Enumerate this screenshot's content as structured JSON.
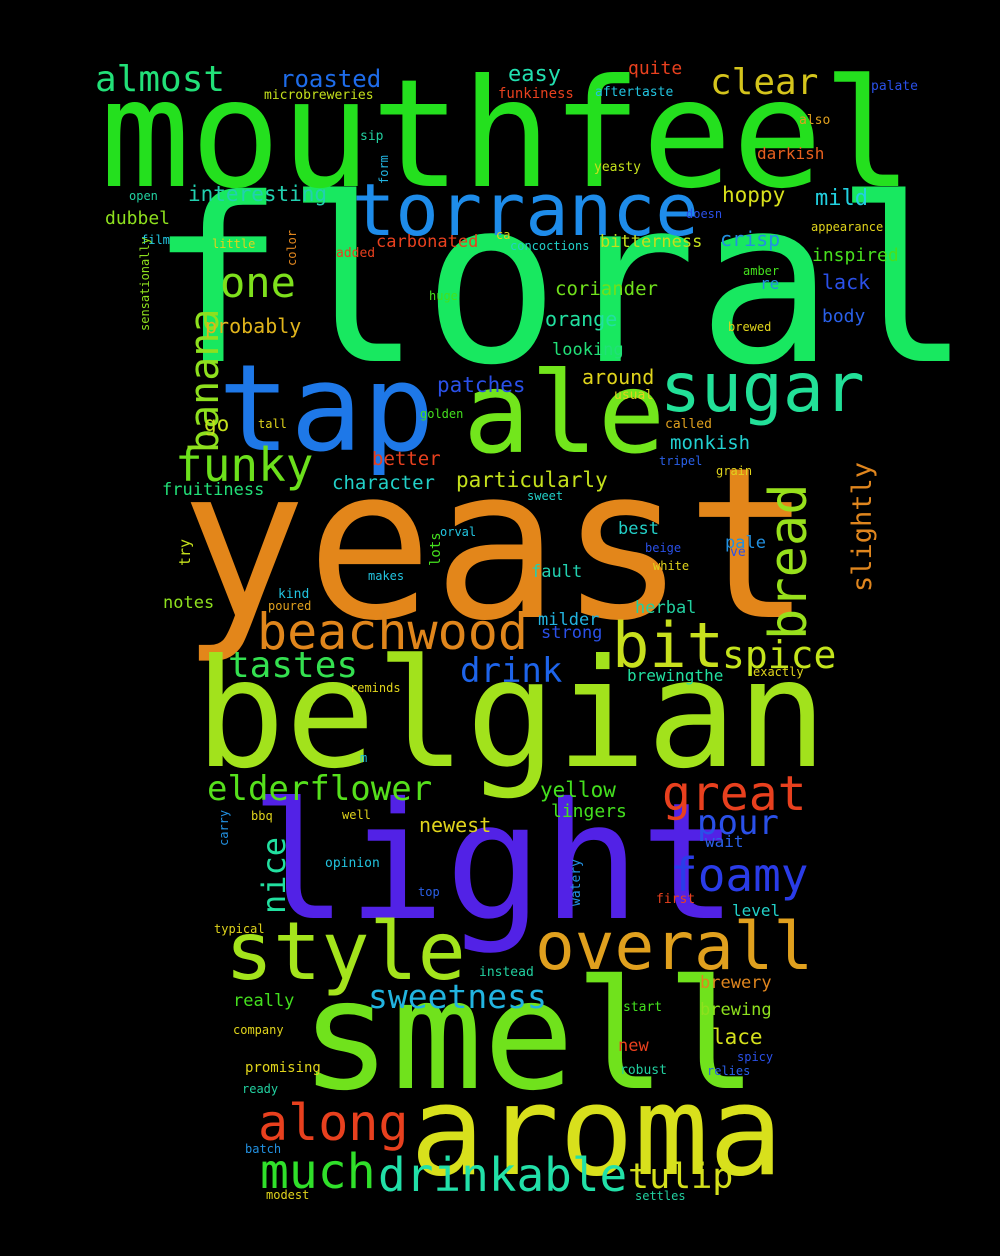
{
  "words": [
    {
      "t": "floral",
      "c": "#18e860"
    },
    {
      "t": "yeast",
      "c": "#e3861a"
    },
    {
      "t": "mouthfeel",
      "c": "#24e01e"
    },
    {
      "t": "belgian",
      "c": "#a2e21c"
    },
    {
      "t": "light",
      "c": "#5222e6"
    },
    {
      "t": "smell",
      "c": "#70e21c"
    },
    {
      "t": "aroma",
      "c": "#d8e01c"
    },
    {
      "t": "tap",
      "c": "#1e78e8"
    },
    {
      "t": "ale",
      "c": "#72e61c"
    },
    {
      "t": "torrance",
      "c": "#1e8cea"
    },
    {
      "t": "style",
      "c": "#a4e41c"
    },
    {
      "t": "overall",
      "c": "#e0a01e"
    },
    {
      "t": "sugar",
      "c": "#22e098"
    },
    {
      "t": "beachwood",
      "c": "#e0861c"
    },
    {
      "t": "bread",
      "c": "#98e01c"
    },
    {
      "t": "bit",
      "c": "#c8e01e"
    },
    {
      "t": "great",
      "c": "#e8401e"
    },
    {
      "t": "along",
      "c": "#e8401e"
    },
    {
      "t": "much",
      "c": "#30e02a"
    },
    {
      "t": "drinkable",
      "c": "#22e0a8"
    },
    {
      "t": "funky",
      "c": "#6ce01c"
    },
    {
      "t": "spice",
      "c": "#c4e41c"
    },
    {
      "t": "banana",
      "c": "#8ee01e"
    },
    {
      "t": "one",
      "c": "#7ee01c"
    },
    {
      "t": "foamy",
      "c": "#2a3ce8"
    },
    {
      "t": "tastes",
      "c": "#34e050"
    },
    {
      "t": "elderflower",
      "c": "#56e01c"
    },
    {
      "t": "sweetness",
      "c": "#22b4e0"
    },
    {
      "t": "tulip",
      "c": "#d4e01c"
    },
    {
      "t": "drink",
      "c": "#1e64ea"
    },
    {
      "t": "pour",
      "c": "#2a50e8"
    },
    {
      "t": "clear",
      "c": "#d4c41c"
    },
    {
      "t": "almost",
      "c": "#22e078"
    },
    {
      "t": "slightly",
      "c": "#e0861e"
    },
    {
      "t": "nice",
      "c": "#22e0a0"
    },
    {
      "t": "roasted",
      "c": "#1e6cea"
    },
    {
      "t": "easy",
      "c": "#22e0b0"
    },
    {
      "t": "quite",
      "c": "#e8401e"
    },
    {
      "t": "interesting",
      "c": "#22d0b0"
    },
    {
      "t": "hoppy",
      "c": "#d8e01c"
    },
    {
      "t": "mild",
      "c": "#22d0e0"
    },
    {
      "t": "dubbel",
      "c": "#8ee01e"
    },
    {
      "t": "crisp",
      "c": "#2290e0"
    },
    {
      "t": "inspired",
      "c": "#48e01e"
    },
    {
      "t": "lack",
      "c": "#2a50e8"
    },
    {
      "t": "body",
      "c": "#2a60e8"
    },
    {
      "t": "carbonated",
      "c": "#e8401e"
    },
    {
      "t": "bitterness",
      "c": "#c4e01c"
    },
    {
      "t": "coriander",
      "c": "#70e01c"
    },
    {
      "t": "orange",
      "c": "#22e0a0"
    },
    {
      "t": "looking",
      "c": "#22e078"
    },
    {
      "t": "probably",
      "c": "#e0b41c"
    },
    {
      "t": "patches",
      "c": "#2a50e8"
    },
    {
      "t": "around",
      "c": "#e0d41c"
    },
    {
      "t": "go",
      "c": "#c4e01c"
    },
    {
      "t": "better",
      "c": "#e8401e"
    },
    {
      "t": "monkish",
      "c": "#22d0d0"
    },
    {
      "t": "particularly",
      "c": "#c4e01c"
    },
    {
      "t": "character",
      "c": "#22d0c8"
    },
    {
      "t": "fruitiness",
      "c": "#22e078"
    },
    {
      "t": "best",
      "c": "#22d0c8"
    },
    {
      "t": "pale",
      "c": "#2290e0"
    },
    {
      "t": "fault",
      "c": "#22d0b0"
    },
    {
      "t": "notes",
      "c": "#8ee01e"
    },
    {
      "t": "herbal",
      "c": "#22d0a0"
    },
    {
      "t": "milder",
      "c": "#22b4e0"
    },
    {
      "t": "strong",
      "c": "#2a50e8"
    },
    {
      "t": "brewingthe",
      "c": "#22e0a0"
    },
    {
      "t": "yellow",
      "c": "#44e01e"
    },
    {
      "t": "lingers",
      "c": "#44e01e"
    },
    {
      "t": "newest",
      "c": "#e0d41c"
    },
    {
      "t": "wait",
      "c": "#2a60e8"
    },
    {
      "t": "level",
      "c": "#22d0c8"
    },
    {
      "t": "really",
      "c": "#44e01e"
    },
    {
      "t": "brewery",
      "c": "#e0861e"
    },
    {
      "t": "brewing",
      "c": "#8ee01e"
    },
    {
      "t": "lace",
      "c": "#d4e01c"
    },
    {
      "t": "new",
      "c": "#e8401e"
    },
    {
      "t": "microbreweries",
      "c": "#c4e01c"
    },
    {
      "t": "funkiness",
      "c": "#e8401e"
    },
    {
      "t": "aftertaste",
      "c": "#22c4e0"
    },
    {
      "t": "palate",
      "c": "#2a50e8"
    },
    {
      "t": "also",
      "c": "#e0a01e"
    },
    {
      "t": "darkish",
      "c": "#e8601e"
    },
    {
      "t": "sip",
      "c": "#22d0a0"
    },
    {
      "t": "form",
      "c": "#22b4e0"
    },
    {
      "t": "yeasty",
      "c": "#c4e01c"
    },
    {
      "t": "open",
      "c": "#22d0a0"
    },
    {
      "t": "film",
      "c": "#22c4e0"
    },
    {
      "t": "little",
      "c": "#e0d41c"
    },
    {
      "t": "color",
      "c": "#e0861e"
    },
    {
      "t": "added",
      "c": "#e8401e"
    },
    {
      "t": "ca",
      "c": "#e0d41c"
    },
    {
      "t": "concoctions",
      "c": "#22d0c8"
    },
    {
      "t": "doesn",
      "c": "#2a50e8"
    },
    {
      "t": "appearance",
      "c": "#e0d41c"
    },
    {
      "t": "sensationally",
      "c": "#8ee01e"
    },
    {
      "t": "amber",
      "c": "#44e01e"
    },
    {
      "t": "re",
      "c": "#2290e0"
    },
    {
      "t": "huge",
      "c": "#44e01e"
    },
    {
      "t": "brewed",
      "c": "#e0d41c"
    },
    {
      "t": "usual",
      "c": "#e0d41c"
    },
    {
      "t": "golden",
      "c": "#44e01e"
    },
    {
      "t": "tall",
      "c": "#e0d41c"
    },
    {
      "t": "called",
      "c": "#e0a01e"
    },
    {
      "t": "tripel",
      "c": "#2a60e8"
    },
    {
      "t": "grain",
      "c": "#e0d41c"
    },
    {
      "t": "sweet",
      "c": "#22d0c8"
    },
    {
      "t": "orval",
      "c": "#22c4e0"
    },
    {
      "t": "lots",
      "c": "#44e01e"
    },
    {
      "t": "try",
      "c": "#c4e01c"
    },
    {
      "t": "beige",
      "c": "#2a50e8"
    },
    {
      "t": "ve",
      "c": "#2a50e8"
    },
    {
      "t": "white",
      "c": "#e0d41c"
    },
    {
      "t": "makes",
      "c": "#22c4e0"
    },
    {
      "t": "kind",
      "c": "#22c4e0"
    },
    {
      "t": "poured",
      "c": "#e0a01e"
    },
    {
      "t": "exactly",
      "c": "#e0d41c"
    },
    {
      "t": "reminds",
      "c": "#e0d41c"
    },
    {
      "t": "m",
      "c": "#22c4e0"
    },
    {
      "t": "carry",
      "c": "#2290e0"
    },
    {
      "t": "bbq",
      "c": "#e0d41c"
    },
    {
      "t": "well",
      "c": "#e0d41c"
    },
    {
      "t": "opinion",
      "c": "#22c4e0"
    },
    {
      "t": "watery",
      "c": "#2290e0"
    },
    {
      "t": "top",
      "c": "#2a60e8"
    },
    {
      "t": "first",
      "c": "#e8401e"
    },
    {
      "t": "typical",
      "c": "#e0d41c"
    },
    {
      "t": "instead",
      "c": "#22d0a0"
    },
    {
      "t": "start",
      "c": "#44e01e"
    },
    {
      "t": "company",
      "c": "#e0d41c"
    },
    {
      "t": "promising",
      "c": "#e0d41c"
    },
    {
      "t": "spicy",
      "c": "#2a50e8"
    },
    {
      "t": "robust",
      "c": "#22d0a0"
    },
    {
      "t": "relies",
      "c": "#2a60e8"
    },
    {
      "t": "ready",
      "c": "#22d0a0"
    },
    {
      "t": "batch",
      "c": "#2290e0"
    },
    {
      "t": "modest",
      "c": "#e0d41c"
    },
    {
      "t": "settles",
      "c": "#22d0a0"
    }
  ]
}
